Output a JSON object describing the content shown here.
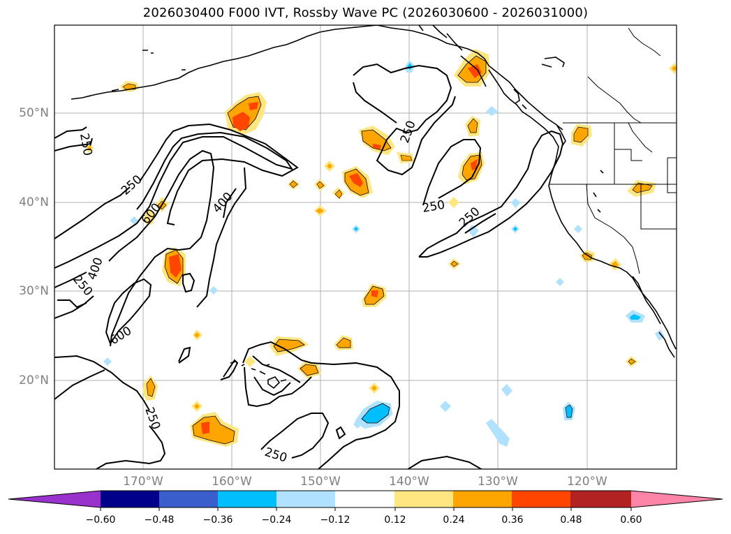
{
  "title": "2026030400 F000 IVT, Rossby Wave PC (2026030600 - 2026031000)",
  "axes": {
    "lat_ticks": [
      "50°N",
      "40°N",
      "30°N",
      "20°N"
    ],
    "lon_ticks": [
      "170°W",
      "160°W",
      "150°W",
      "140°W",
      "130°W",
      "120°W"
    ]
  },
  "contour_labels": [
    "250",
    "250",
    "600",
    "400",
    "400",
    "250",
    "600",
    "250",
    "250",
    "250",
    "250",
    "250"
  ],
  "colorbar": {
    "tick_labels": [
      "−0.60",
      "−0.48",
      "−0.36",
      "−0.24",
      "−0.12",
      "0.12",
      "0.24",
      "0.36",
      "0.48",
      "0.60"
    ],
    "colors": [
      "#9932cc",
      "#00008b",
      "#3a5fcd",
      "#00bfff",
      "#b0e2ff",
      "#ffffff",
      "#ffe680",
      "#ffa500",
      "#ff4500",
      "#b22222",
      "#ff85a8"
    ]
  },
  "colors": {
    "frame": "#000000",
    "grid": "#b0b0b0",
    "tick_label": "#808080"
  }
}
